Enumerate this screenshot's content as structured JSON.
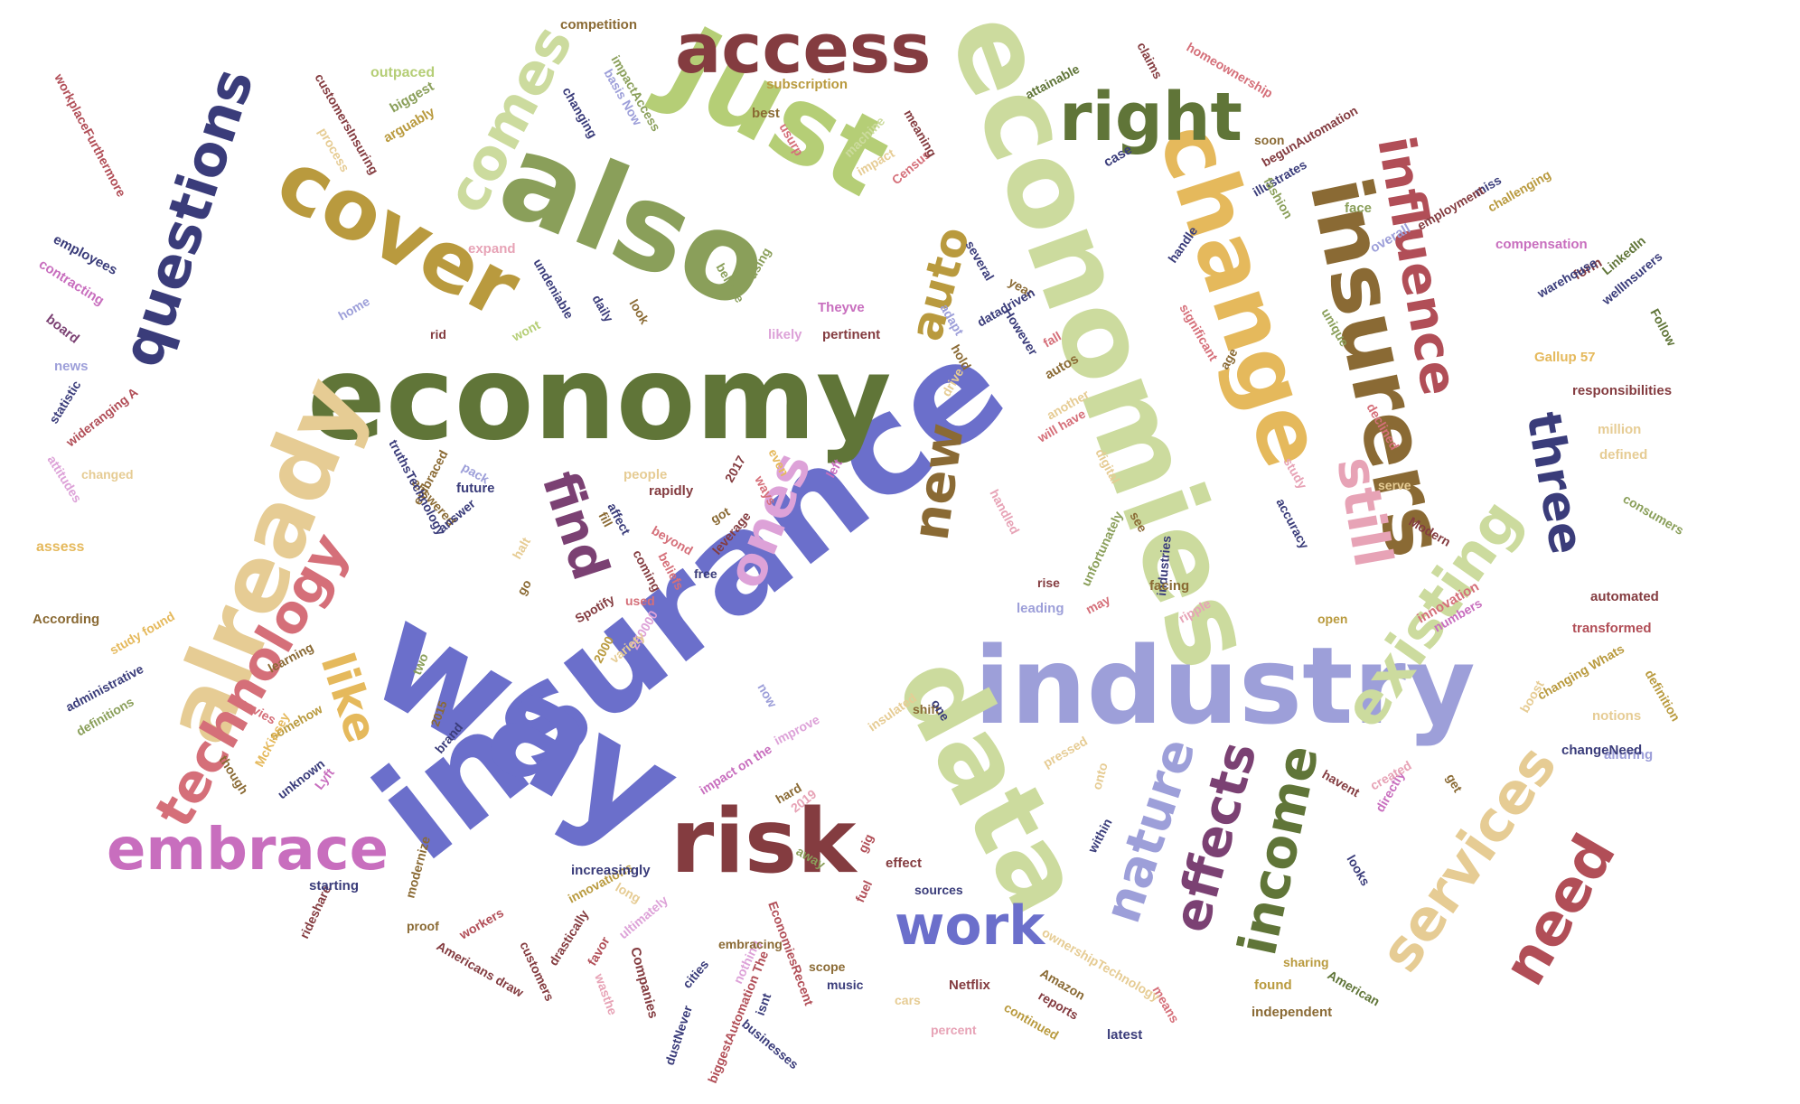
{
  "colors": {
    "navy": "#3A3C7A",
    "periwinkle": "#6B6FCB",
    "lavender": "#9D9FD9",
    "olive": "#607538",
    "sage": "#8A9F5A",
    "lime": "#B5CE76",
    "mint": "#CCDB9E",
    "gold": "#B99A3E",
    "amber": "#E5B95C",
    "tan": "#E6CC94",
    "brown": "#8A6A34",
    "maroon": "#843C40",
    "red": "#B14E57",
    "rose": "#D56F79",
    "pink": "#E7A3B6",
    "plum": "#7B4173",
    "magenta": "#C86EBE",
    "orchid": "#DDA2D8"
  },
  "words": {
    "insurance": "insurance",
    "economy": "economy",
    "economies": "economies",
    "industry": "industry",
    "way": "way",
    "also": "also",
    "just": "Just",
    "data": "data",
    "change": "change",
    "insurers": "insurers",
    "already": "already",
    "cover": "cover",
    "risk": "risk",
    "access": "access",
    "questions": "questions",
    "influence": "influence",
    "right": "right",
    "comes": "comes",
    "technology": "technology",
    "embrace": "embrace",
    "existing": "existing",
    "services": "services",
    "nature": "nature",
    "effects": "effects",
    "income": "income",
    "work": "work",
    "need": "need",
    "still": "still",
    "three": "three",
    "find": "find",
    "ones": "ones",
    "like": "like",
    "new": "new",
    "auto": "auto",
    "workplacefurthermore": "workplaceFurthermore",
    "employees": "employees",
    "contracting": "contracting",
    "board": "board",
    "news": "news",
    "statistic": "statistic",
    "wideranging": "wideranging A",
    "attitudes": "attitudes",
    "assess": "assess",
    "according": "According",
    "study_found": "study found",
    "administrative": "administrative",
    "definitions": "definitions",
    "movies": "movies",
    "though": "though",
    "somehow": "somehow",
    "unknown": "unknown",
    "lyft": "Lyft",
    "mckinsey": "McKinsey",
    "y2015": "2015",
    "two": "two",
    "learning": "learning",
    "brand": "brand",
    "rideshare": "rideshare",
    "starting": "starting",
    "modernize": "modernize",
    "proof": "proof",
    "americans_draw": "Americans draw",
    "workers": "workers",
    "customers": "customers",
    "drastically": "drastically",
    "favor": "favor",
    "wasthe": "wasthe",
    "companies": "Companies",
    "cities": "cities",
    "dustnever": "dustNever",
    "biggestautomation": "biggestAutomation The",
    "economiesrecent": "EconomiesRecent",
    "isnt": "isnt",
    "nothing": "nothing",
    "businesses": "businesses",
    "music": "music",
    "netflix": "Netflix",
    "cars": "cars",
    "percent": "percent",
    "continued": "continued",
    "reports": "reports",
    "amazon": "Amazon",
    "ownershiptechnology": "ownershipTechnology",
    "latest": "latest",
    "means": "means",
    "found": "found",
    "sharing": "sharing",
    "american": "American",
    "independent": "independent",
    "ultimately": "ultimately",
    "embracing": "embracing",
    "scope": "scope",
    "innovations": "innovations",
    "long": "long",
    "increasingly": "increasingly",
    "effect": "effect",
    "fuel": "fuel",
    "gig": "gig",
    "sources": "sources",
    "away": "away",
    "y2019": "2019",
    "hard": "hard",
    "impact_on_the": "impact on the",
    "now": "now",
    "improve": "improve",
    "insulated": "insulated",
    "shift": "shift",
    "one": "one",
    "pressed": "pressed",
    "onto": "onto",
    "within": "within",
    "havent": "havent",
    "created": "created",
    "directly": "directly",
    "get": "get",
    "looks": "looks",
    "changeneed": "changeNeed",
    "alluring": "alluring",
    "boost": "boost",
    "notions": "notions",
    "definition": "definition",
    "changing_whats": "changing Whats",
    "transformed": "transformed",
    "automated": "automated",
    "consumers": "consumers",
    "defined": "defined",
    "million": "million",
    "responsibilities": "responsibilities",
    "gallup": "Gallup 57",
    "follow": "Follow",
    "wellinsurers": "wellInsurers",
    "linkedin": "LinkedIn",
    "form": "form",
    "warehouse": "warehouse",
    "compensation": "compensation",
    "challenging": "challenging",
    "miss": "miss",
    "employment": "employment",
    "overall": "overall",
    "fashion": "fashion",
    "illustrates": "illustrates",
    "soon": "soon",
    "begunautomation": "begunAutomation",
    "homeownership": "homeownership",
    "claims": "claims",
    "attainable": "attainable",
    "case": "case",
    "census": "Census",
    "meaning": "meaning",
    "machine": "machine",
    "impact": "impact",
    "face": "face",
    "handle": "handle",
    "unique": "unique",
    "significant": "significant",
    "age": "age",
    "declined": "declined",
    "serve": "serve",
    "modern": "Modern",
    "innovation": "innovation",
    "numbers": "numbers",
    "accuracy": "accuracy",
    "study": "study",
    "open": "open",
    "ripple": "ripple",
    "facing": "facing",
    "industries": "industries",
    "see": "see",
    "unfortunately": "unfortunately",
    "digital": "digital",
    "rise": "rise",
    "leading": "leading",
    "may": "may",
    "handled": "handled",
    "will_have": "will have",
    "another": "another",
    "autos": "autos",
    "fall": "fall",
    "hold": "hold",
    "drive": "drive",
    "datadriven": "datadriven",
    "adapt": "adapt",
    "however": "However",
    "year": "year",
    "several": "several",
    "theyve": "Theyve",
    "pertinent": "pertinent",
    "likely": "likely",
    "using": "using",
    "believe": "believe",
    "daily": "daily",
    "look": "look",
    "undeniable": "undeniable",
    "wont": "wont",
    "rid": "rid",
    "home": "home",
    "expand": "expand",
    "customersinsuring": "customersInsuring",
    "process": "process",
    "arguably": "arguably",
    "biggest": "biggest",
    "outpaced": "outpaced",
    "competition": "competition",
    "impactaccess": "impactAccess",
    "changing": "changing",
    "basis_now": "basis Now",
    "subscription": "subscription",
    "best": "best",
    "usurp": "usurp",
    "pack": "pack",
    "future": "future",
    "answered": "answered",
    "answer": "answer",
    "embraced": "embraced",
    "truthstechnology": "truthsTechnology",
    "changed": "changed",
    "halt": "halt",
    "go": "go",
    "spotify": "Spotify",
    "n250000": "250000",
    "variety": "variety",
    "n2000": "2000",
    "used": "used",
    "coming": "coming",
    "affect": "affect",
    "beliefs": "beliefs",
    "beyond": "beyond",
    "free": "free",
    "rapidly": "rapidly",
    "people": "people",
    "fill": "fill",
    "got": "got",
    "leverage": "leverage",
    "y2017": "2017",
    "ways": "ways",
    "even": "even",
    "left": "left"
  }
}
